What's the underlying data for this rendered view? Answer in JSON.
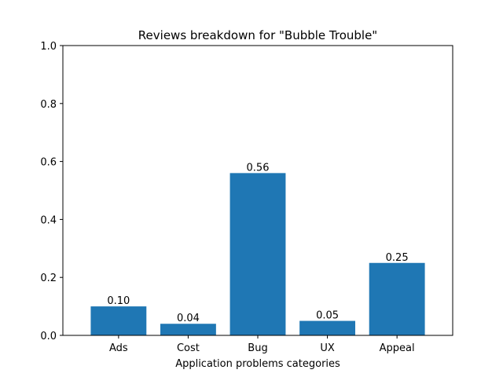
{
  "chart_data": {
    "type": "bar",
    "title": "Reviews breakdown for \"Bubble Trouble\"",
    "xlabel": "Application problems categories",
    "ylabel": "",
    "categories": [
      "Ads",
      "Cost",
      "Bug",
      "UX",
      "Appeal"
    ],
    "values": [
      0.1,
      0.04,
      0.56,
      0.05,
      0.25
    ],
    "data_labels": [
      "0.10",
      "0.04",
      "0.56",
      "0.05",
      "0.25"
    ],
    "ylim": [
      0,
      1.0
    ],
    "yticks": [
      0.0,
      0.2,
      0.4,
      0.6,
      0.8,
      1.0
    ],
    "ytick_labels": [
      "0.0",
      "0.2",
      "0.4",
      "0.6",
      "0.8",
      "1.0"
    ],
    "grid": false,
    "legend": "none",
    "colors": {
      "bar": "#1f77b4",
      "axis": "#000000"
    }
  }
}
